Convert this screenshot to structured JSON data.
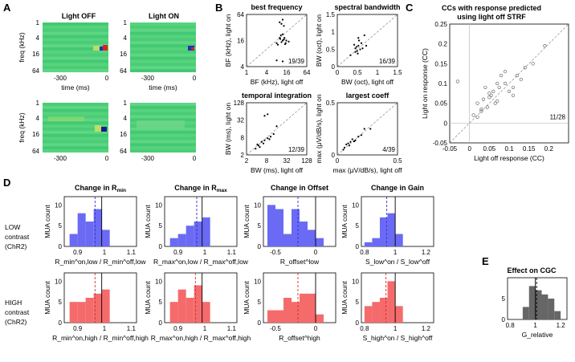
{
  "panel_labels": {
    "A": "A",
    "B": "B",
    "C": "C",
    "D": "D",
    "E": "E"
  },
  "colors": {
    "blue": "#6a6af5",
    "red": "#f56b6b",
    "gray": "#666666",
    "grid": "#bbbbbb"
  },
  "panelA": {
    "titles": [
      "Light OFF",
      "Light ON"
    ],
    "ylabel": "freq (kHz)",
    "xlabel": "time (ms)",
    "yticks": [
      "1",
      "4",
      "16",
      "64"
    ],
    "xticks": [
      "-300",
      "0"
    ]
  },
  "panelB": {
    "plots": [
      {
        "title": "best frequency",
        "xlabel": "BF (kHz), light off",
        "ylabel": "BF (kHz), light on",
        "ticks": [
          "4",
          "16",
          "64"
        ],
        "yticks": [
          "4",
          "16",
          "64"
        ],
        "xticks": [
          "1",
          "4",
          "16",
          "64"
        ],
        "count": "19/39",
        "points": [
          [
            0.55,
            0.85
          ],
          [
            0.6,
            0.9
          ],
          [
            0.62,
            0.78
          ],
          [
            0.58,
            0.82
          ],
          [
            0.55,
            0.55
          ],
          [
            0.6,
            0.5
          ],
          [
            0.65,
            0.45
          ],
          [
            0.62,
            0.52
          ],
          [
            0.58,
            0.47
          ],
          [
            0.66,
            0.5
          ],
          [
            0.63,
            0.55
          ],
          [
            0.5,
            0.45
          ],
          [
            0.52,
            0.42
          ],
          [
            0.57,
            0.6
          ],
          [
            0.6,
            0.1
          ],
          [
            0.5,
            0.12
          ],
          [
            0.64,
            0.43
          ],
          [
            0.7,
            0.48
          ],
          [
            0.56,
            0.53
          ],
          [
            0.6,
            0.62
          ]
        ]
      },
      {
        "title": "spectral bandwidth",
        "xlabel": "BW (oct), light off",
        "ylabel": "BW (oct), light on",
        "yticks": [
          "0",
          "0.5",
          "1",
          "1.5"
        ],
        "xticks": [
          "0",
          "0.5",
          "1",
          "1.5"
        ],
        "count": "16/39",
        "points": [
          [
            0.3,
            0.35
          ],
          [
            0.35,
            0.4
          ],
          [
            0.33,
            0.3
          ],
          [
            0.28,
            0.42
          ],
          [
            0.36,
            0.5
          ],
          [
            0.4,
            0.45
          ],
          [
            0.34,
            0.25
          ],
          [
            0.3,
            0.28
          ],
          [
            0.38,
            0.33
          ],
          [
            0.45,
            0.6
          ],
          [
            0.42,
            0.35
          ],
          [
            0.22,
            0.22
          ],
          [
            0.35,
            0.55
          ],
          [
            0.32,
            0.38
          ],
          [
            0.48,
            0.4
          ]
        ]
      },
      {
        "title": "temporal integration",
        "xlabel": "BW (ms), light off",
        "ylabel": "BW (ms), light on",
        "yticks": [
          "2",
          "8",
          "32",
          "128"
        ],
        "xticks": [
          "2",
          "8",
          "32",
          "128"
        ],
        "count": "12/39",
        "points": [
          [
            0.15,
            0.12
          ],
          [
            0.2,
            0.18
          ],
          [
            0.25,
            0.25
          ],
          [
            0.3,
            0.28
          ],
          [
            0.35,
            0.32
          ],
          [
            0.4,
            0.35
          ],
          [
            0.3,
            0.75
          ],
          [
            0.35,
            0.78
          ],
          [
            0.45,
            0.4
          ],
          [
            0.18,
            0.2
          ],
          [
            0.22,
            0.15
          ],
          [
            0.28,
            0.22
          ],
          [
            0.5,
            0.55
          ],
          [
            0.38,
            0.3
          ]
        ]
      },
      {
        "title": "largest coeff",
        "xlabel": "max (μV/dB/s), light off",
        "ylabel": "max (μV/dB/s), light on",
        "yticks": [
          "0",
          "0.5"
        ],
        "xticks": [
          "0",
          "0.5"
        ],
        "count": "4/39",
        "points": [
          [
            0.1,
            0.1
          ],
          [
            0.15,
            0.2
          ],
          [
            0.2,
            0.18
          ],
          [
            0.25,
            0.3
          ],
          [
            0.3,
            0.28
          ],
          [
            0.35,
            0.35
          ],
          [
            0.4,
            0.38
          ],
          [
            0.45,
            0.5
          ],
          [
            0.12,
            0.14
          ],
          [
            0.18,
            0.22
          ],
          [
            0.55,
            0.5
          ],
          [
            0.22,
            0.25
          ],
          [
            0.28,
            0.26
          ]
        ]
      }
    ]
  },
  "chart_data": [
    {
      "type": "scatter",
      "title": "CCs with response predicted using light off STRF",
      "xlabel": "Light off response (CC)",
      "ylabel": "Light on response (CC)",
      "xlim": [
        -0.05,
        0.25
      ],
      "ylim": [
        -0.05,
        0.25
      ],
      "xticks": [
        "-0.05",
        "0",
        "0.05",
        "0.1",
        "0.15",
        "0.2"
      ],
      "yticks": [
        "-0.05",
        "0",
        "0.05",
        "0.1",
        "0.15",
        "0.2",
        "0.25"
      ],
      "count_label": "11/28",
      "x": [
        -0.03,
        0.01,
        0.02,
        0.03,
        0.035,
        0.04,
        0.045,
        0.05,
        0.055,
        0.06,
        0.065,
        0.07,
        0.075,
        0.08,
        0.09,
        0.1,
        0.11,
        0.12,
        0.13,
        0.14,
        0.16,
        0.19,
        0.03,
        0.05,
        0.07,
        0.09,
        0.11,
        0.02
      ],
      "y": [
        0.105,
        0.02,
        0.05,
        0.03,
        0.06,
        0.09,
        0.04,
        0.065,
        0.07,
        0.08,
        0.05,
        0.1,
        0.09,
        0.12,
        0.1,
        0.08,
        0.07,
        0.12,
        0.11,
        0.14,
        0.15,
        0.195,
        0.035,
        0.075,
        0.055,
        0.13,
        0.09,
        0.015
      ]
    },
    {
      "type": "bar",
      "title": "Change in Rmin",
      "row_label": "LOW contrast (ChR2)",
      "ylabel": "MUA count",
      "xlabel": "R_min^on,low / R_min^off,low",
      "bin_edges": [
        0.87,
        0.9,
        0.93,
        0.96,
        0.99,
        1.02
      ],
      "values": [
        3,
        8,
        6,
        9,
        4
      ],
      "ylim": [
        0,
        12
      ],
      "xlim": [
        0.85,
        1.12
      ],
      "xticks": [
        "0.9",
        "1",
        "1.1"
      ],
      "yticks": [
        "0",
        "5",
        "10"
      ],
      "mean": 0.965,
      "ref": 0.99
    },
    {
      "type": "bar",
      "title": "Change in Rmax",
      "row_label": "LOW contrast (ChR2)",
      "ylabel": "MUA count",
      "xlabel": "R_max^on,low / R_max^off,low",
      "bin_edges": [
        0.87,
        0.9,
        0.93,
        0.96,
        0.99,
        1.02
      ],
      "values": [
        2,
        3,
        5,
        6,
        7
      ],
      "ylim": [
        0,
        12
      ],
      "xlim": [
        0.85,
        1.12
      ],
      "xticks": [
        "0.9",
        "1",
        "1.1"
      ],
      "yticks": [
        "0",
        "5",
        "10"
      ],
      "mean": 0.97,
      "ref": 0.99
    },
    {
      "type": "bar",
      "title": "Change in Offset",
      "row_label": "LOW contrast (ChR2)",
      "ylabel": "MUA count",
      "xlabel": "R_offset^low",
      "bin_edges": [
        -0.6,
        -0.5,
        -0.4,
        -0.3,
        -0.2,
        -0.1,
        0,
        0.1
      ],
      "values": [
        10,
        9,
        3,
        9,
        6,
        4,
        2
      ],
      "ylim": [
        0,
        12
      ],
      "xlim": [
        -0.65,
        0.25
      ],
      "xticks": [
        "-0.5",
        "0"
      ],
      "yticks": [
        "0",
        "5",
        "10"
      ],
      "mean": -0.22,
      "ref": 0.0
    },
    {
      "type": "bar",
      "title": "Change in Gain",
      "row_label": "LOW contrast (ChR2)",
      "ylabel": "MUA count",
      "xlabel": "S_low^on / S_low^off",
      "bin_edges": [
        0.8,
        0.85,
        0.9,
        0.95,
        1.0,
        1.05
      ],
      "values": [
        1,
        2,
        7,
        8,
        3
      ],
      "ylim": [
        0,
        12
      ],
      "xlim": [
        0.78,
        1.25
      ],
      "xticks": [
        "0.8",
        "1",
        "1.2"
      ],
      "yticks": [
        "0",
        "5",
        "10"
      ],
      "mean": 0.945,
      "ref": 1.0
    },
    {
      "type": "bar",
      "title": "",
      "row_label": "HIGH contrast (ChR2)",
      "ylabel": "MUA count",
      "xlabel": "R_min^on,high / R_min^off,high",
      "bin_edges": [
        0.87,
        0.9,
        0.93,
        0.96,
        0.99,
        1.02
      ],
      "values": [
        5,
        5,
        6,
        7,
        8
      ],
      "ylim": [
        0,
        12
      ],
      "xlim": [
        0.85,
        1.12
      ],
      "xticks": [
        "0.9",
        "1",
        "1.1"
      ],
      "yticks": [
        "0",
        "5",
        "10"
      ],
      "mean": 0.965,
      "ref": 0.99
    },
    {
      "type": "bar",
      "title": "",
      "row_label": "HIGH contrast (ChR2)",
      "ylabel": "MUA count",
      "xlabel": "R_max^on,high / R_max^off,high",
      "bin_edges": [
        0.87,
        0.9,
        0.93,
        0.96,
        0.99,
        1.02
      ],
      "values": [
        5,
        8,
        6,
        9,
        5
      ],
      "ylim": [
        0,
        12
      ],
      "xlim": [
        0.85,
        1.12
      ],
      "xticks": [
        "0.9",
        "1",
        "1.1"
      ],
      "yticks": [
        "0",
        "5",
        "10"
      ],
      "mean": 0.965,
      "ref": 0.99
    },
    {
      "type": "bar",
      "title": "",
      "row_label": "HIGH contrast (ChR2)",
      "ylabel": "MUA count",
      "xlabel": "R_offset^high",
      "bin_edges": [
        -0.6,
        -0.5,
        -0.4,
        -0.3,
        -0.2,
        -0.1,
        0,
        0.1
      ],
      "values": [
        3,
        3,
        6,
        5,
        7,
        7,
        2
      ],
      "ylim": [
        0,
        12
      ],
      "xlim": [
        -0.65,
        0.25
      ],
      "xticks": [
        "-0.5",
        "0"
      ],
      "yticks": [
        "0",
        "5",
        "10"
      ],
      "mean": -0.22,
      "ref": 0.0
    },
    {
      "type": "bar",
      "title": "",
      "row_label": "HIGH contrast (ChR2)",
      "ylabel": "MUA count",
      "xlabel": "S_high^on / S_high^off",
      "bin_edges": [
        0.8,
        0.85,
        0.9,
        0.95,
        1.0,
        1.05
      ],
      "values": [
        4,
        5,
        6,
        10,
        4
      ],
      "ylim": [
        0,
        12
      ],
      "xlim": [
        0.78,
        1.25
      ],
      "xticks": [
        "0.8",
        "1",
        "1.2"
      ],
      "yticks": [
        "0",
        "5",
        "10"
      ],
      "mean": 0.94,
      "ref": 1.0
    },
    {
      "type": "bar",
      "title": "Effect on CGC",
      "ylabel": "",
      "xlabel": "G_relative",
      "bin_edges": [
        0.9,
        0.95,
        1.0,
        1.05,
        1.1,
        1.15,
        1.2
      ],
      "values": [
        3,
        8,
        7,
        6,
        5,
        2
      ],
      "ylim": [
        0,
        10
      ],
      "xlim": [
        0.78,
        1.25
      ],
      "xticks": [
        "0.8",
        "1",
        "1.2"
      ],
      "yticks": [
        "0",
        "5"
      ],
      "mean": 1.01,
      "ref": 1.0
    }
  ],
  "labels": {
    "row_low_1": "LOW",
    "row_low_2": "contrast",
    "row_low_3": "(ChR2)",
    "row_high_1": "HIGH",
    "row_high_2": "contrast",
    "row_high_3": "(ChR2)",
    "d_titles": [
      "Change in R",
      "Change in R",
      "Change in Offset",
      "Change in Gain"
    ],
    "d_title_subs": [
      "min",
      "max"
    ],
    "e_title": "Effect on CGC",
    "c_title_1": "CCs with response predicted",
    "c_title_2": "using light off STRF"
  }
}
